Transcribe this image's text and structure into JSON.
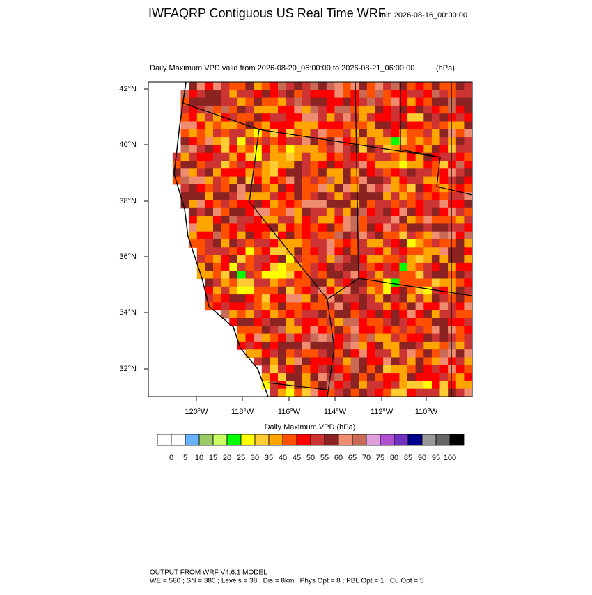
{
  "header": {
    "title": "IWFAQRP Contiguous US Real Time WRF",
    "init": "Init: 2026-08-16_00:00:00"
  },
  "map": {
    "subtitle": "Daily Maximum VPD valid from 2026-08-20_06:00:00 to 2026-08-21_06:00:00",
    "units": "(hPa)",
    "lat_labels": [
      "42°N",
      "40°N",
      "38°N",
      "36°N",
      "34°N",
      "32°N"
    ],
    "lon_labels": [
      "120°W",
      "118°W",
      "116°W",
      "114°W",
      "112°W",
      "110°W"
    ]
  },
  "colorbar": {
    "title": "Daily Maximum VPD  (hPa)",
    "ticks": [
      0,
      5,
      10,
      15,
      20,
      25,
      30,
      35,
      40,
      45,
      50,
      55,
      60,
      65,
      70,
      75,
      80,
      85,
      90,
      95,
      100
    ],
    "colors": [
      "#ffffff",
      "#ffffff",
      "#66b2ff",
      "#99cc66",
      "#ccff66",
      "#00ff00",
      "#ffff00",
      "#ffcc33",
      "#ffa500",
      "#ff5000",
      "#ff0000",
      "#cc3333",
      "#8b2323",
      "#f08c70",
      "#c86a55",
      "#dda0dd",
      "#b050d0",
      "#7030c0",
      "#000090",
      "#999999",
      "#666666",
      "#000000"
    ]
  },
  "footer": {
    "line1": "OUTPUT FROM WRF V4.6.1 MODEL",
    "line2": "WE = 580 ; SN = 380 ; Levels = 38 ; Dis = 8km ; Phys Opt = 8 ; PBL Opt = 1 ; Cu Opt = 5"
  }
}
